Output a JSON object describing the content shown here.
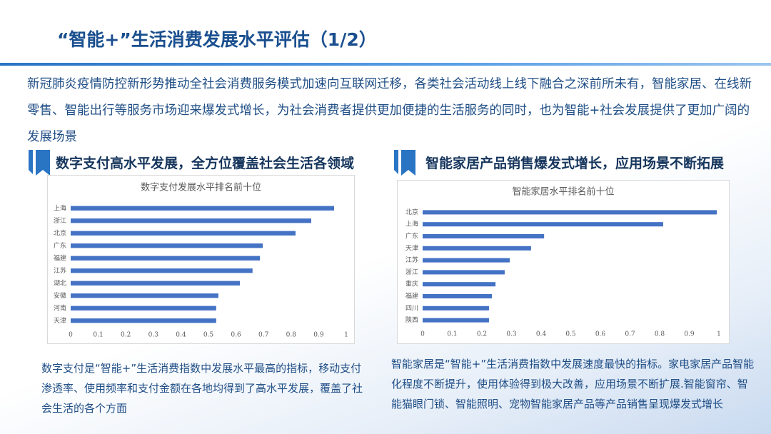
{
  "title": "“智能+”生活消费发展水平评估（1/2）",
  "intro": "新冠肺炎疫情防控新形势推动全社会消费服务模式加速向互联网迁移，各类社会活动线上线下融合之深前所未有，智能家居、在线新零售、智能出行等服务市场迎来爆发式增长，为社会消费者提供更加便捷的生活服务的同时，也为智能+社会发展提供了更加广阔的发展场景",
  "sections": [
    {
      "heading": "数字支付高水平发展，全方位覆盖社会生活各领域",
      "caption": "数字支付是“智能+”生活消费指数中发展水平最高的指标，移动支付渗透率、使用频率和支付金额在各地均得到了高水平发展，覆盖了社会生活的各个方面"
    },
    {
      "heading": "智能家居产品销售爆发式增长，应用场景不断拓展",
      "caption": "智能家居是“智能+”生活消费指数中发展速度最快的指标。家电家居产品智能化程度不断提升，使用体验得到极大改善，应用场景不断扩展.智能窗帘、智能猫眼门锁、智能照明、宠物智能家居产品等产品销售呈现爆发式增长"
    }
  ],
  "chart_data": [
    {
      "type": "hbar",
      "title": "数字支付发展水平排名前十位",
      "categories": [
        "上海",
        "浙江",
        "北京",
        "广东",
        "福建",
        "江苏",
        "湖北",
        "安徽",
        "河南",
        "天津"
      ],
      "values": [
        0.956,
        0.873,
        0.816,
        0.697,
        0.687,
        0.66,
        0.614,
        0.536,
        0.528,
        0.528
      ],
      "color": "#4472c4",
      "xlim": [
        0,
        1
      ],
      "xticks": [
        0,
        0.1,
        0.2,
        0.3,
        0.4,
        0.5,
        0.6,
        0.7,
        0.8,
        0.9,
        1
      ],
      "grid": false
    },
    {
      "type": "hbar",
      "title": "智能家居水平排名前十位",
      "categories": [
        "北京",
        "上海",
        "广东",
        "天津",
        "江苏",
        "浙江",
        "重庆",
        "福建",
        "四川",
        "陕西"
      ],
      "values": [
        0.993,
        0.812,
        0.41,
        0.366,
        0.294,
        0.277,
        0.246,
        0.234,
        0.224,
        0.224
      ],
      "color": "#4472c4",
      "xlim": [
        0,
        1
      ],
      "xticks": [
        0,
        0.1,
        0.2,
        0.3,
        0.4,
        0.5,
        0.6,
        0.7,
        0.8,
        0.9,
        1
      ],
      "grid": false
    }
  ]
}
